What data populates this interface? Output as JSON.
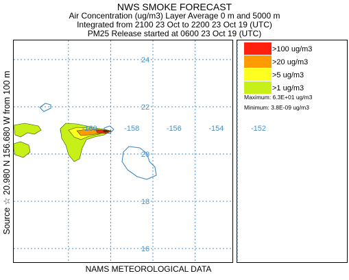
{
  "header": {
    "title": "NWS SMOKE FORECAST",
    "subtitle_1": "Air Concentration (ug/m3) Layer Average     0 m  and  5000 m",
    "subtitle_2": "Integrated from 2100 23 Oct to 2200 23 Oct 19 (UTC)",
    "subtitle_3": "PM25 Release started at 0600 23 Oct 19 (UTC)"
  },
  "side_label": "Source ☆  20.980  N 156.680  W     from  100 m",
  "footer": "NAMS METEOROLOGICAL DATA",
  "colors": {
    "grid": "#4a90c8",
    "coast": "#3a86c0",
    "level_100": "#ff2010",
    "level_20": "#ff9a00",
    "level_5": "#ffff20",
    "level_1": "#c6f018",
    "contour": "#2a4a00"
  },
  "chart_data": {
    "type": "map",
    "map_labels": {
      "latitudes": [
        "24",
        "22",
        "20",
        "18",
        "16"
      ],
      "longitudes": [
        "-160",
        "-158",
        "-156",
        "-154",
        "-152"
      ]
    },
    "legend": [
      {
        "label": ">100 ug/m3",
        "color": "#ff2010"
      },
      {
        "label": ">20 ug/m3",
        "color": "#ff9a00"
      },
      {
        "label": ">5 ug/m3",
        "color": "#ffff20"
      },
      {
        "label": ">1 ug/m3",
        "color": "#c6f018"
      }
    ],
    "maximum": "Maximum: 6.3E+01 ug/m3",
    "minimum": "Minimum: 3.8E-09 ug/m3",
    "source": {
      "lat": 20.98,
      "lon": -156.68,
      "height_m": 100
    }
  }
}
